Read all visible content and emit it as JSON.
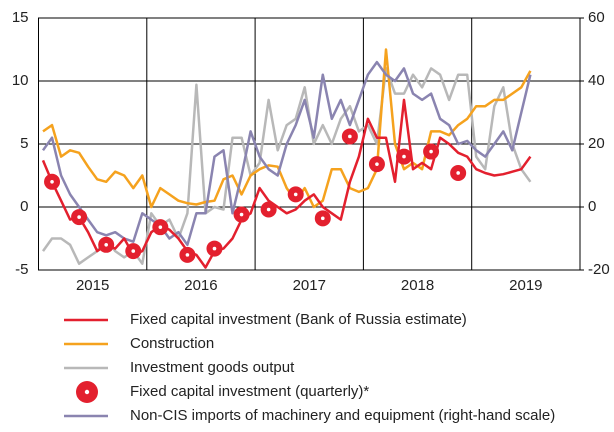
{
  "chart_data": {
    "type": "line",
    "categories": [
      null,
      null,
      null,
      null,
      null,
      "2015",
      null,
      null,
      null,
      null,
      null,
      null,
      null,
      null,
      null,
      null,
      null,
      "2016",
      null,
      null,
      null,
      null,
      null,
      null,
      null,
      null,
      null,
      null,
      null,
      "2017",
      null,
      null,
      null,
      null,
      null,
      null,
      null,
      null,
      null,
      null,
      null,
      "2018",
      null,
      null,
      null,
      null,
      null,
      null,
      null,
      null,
      null,
      null,
      null,
      "2019",
      null,
      null,
      null,
      null,
      null,
      null
    ],
    "ylim": [
      -5,
      15
    ],
    "yticks": [
      -5,
      0,
      5,
      10,
      15
    ],
    "y2lim": [
      -20,
      60
    ],
    "y2ticks": [
      -20,
      0,
      20,
      40,
      60
    ],
    "grid": true,
    "series": [
      {
        "name": "Fixed capital investment (Bank of Russia estimate)",
        "color": "#e3202e",
        "mark": "line",
        "values": [
          3.7,
          2.0,
          0.5,
          -1.0,
          -0.8,
          -2.0,
          -3.5,
          -3.0,
          -3.3,
          -2.5,
          -3.8,
          -3.5,
          -2.0,
          -1.5,
          -1.8,
          -2.5,
          -3.5,
          -3.8,
          -4.8,
          -3.5,
          -3.3,
          -2.5,
          -1.0,
          -0.5,
          1.5,
          0.5,
          0.0,
          -0.5,
          -0.2,
          0.5,
          1.0,
          0.0,
          -0.5,
          -1.0,
          2.0,
          4.0,
          7.0,
          5.5,
          5.5,
          2.0,
          8.5,
          3.0,
          3.5,
          3.0,
          5.5,
          5.0,
          4.3,
          4.0,
          3.0,
          2.7,
          2.5,
          2.6,
          2.8,
          3.0,
          4.0,
          null,
          null,
          null,
          null,
          null
        ]
      },
      {
        "name": "Construction",
        "color": "#f5a21e",
        "mark": "line",
        "values": [
          6.0,
          6.5,
          4.0,
          4.5,
          4.3,
          3.2,
          2.2,
          2.0,
          2.8,
          2.5,
          1.5,
          2.5,
          0.0,
          1.5,
          1.0,
          0.5,
          0.3,
          0.2,
          0.4,
          0.5,
          2.2,
          2.5,
          1.0,
          2.5,
          3.0,
          3.3,
          3.2,
          1.5,
          0.5,
          1.5,
          0.0,
          0.5,
          3.0,
          3.0,
          1.5,
          1.2,
          1.5,
          3.0,
          12.5,
          5.0,
          3.0,
          3.5,
          3.0,
          6.0,
          6.0,
          5.7,
          6.5,
          7.0,
          8.0,
          8.0,
          8.5,
          8.5,
          9.0,
          9.5,
          10.8,
          null,
          null,
          null,
          null,
          null
        ]
      },
      {
        "name": "Investment goods output",
        "color": "#b8b8b8",
        "mark": "line",
        "values": [
          -3.5,
          -2.5,
          -2.5,
          -3.0,
          -4.5,
          -4.0,
          -3.5,
          -2.5,
          -3.5,
          -4.0,
          -3.5,
          -4.5,
          -0.5,
          -1.5,
          -1.0,
          -2.5,
          -0.5,
          9.7,
          -0.5,
          0.0,
          -0.2,
          5.5,
          5.5,
          2.5,
          3.5,
          8.5,
          4.5,
          6.5,
          7.0,
          9.5,
          5.0,
          6.5,
          5.0,
          7.0,
          8.0,
          6.0,
          6.5,
          5.0,
          11.0,
          9.0,
          9.0,
          10.5,
          9.5,
          11.0,
          10.5,
          8.5,
          10.5,
          10.5,
          4.0,
          3.0,
          8.0,
          9.5,
          5.0,
          3.0,
          2.0,
          null,
          null,
          null,
          null,
          null
        ]
      },
      {
        "name": "Fixed capital investment (quarterly)*",
        "color": "#e3202e",
        "mark": "circle",
        "values": [
          null,
          2.0,
          null,
          null,
          -0.8,
          null,
          null,
          -3.0,
          null,
          null,
          -3.5,
          null,
          null,
          -1.6,
          null,
          null,
          -3.8,
          null,
          null,
          -3.3,
          null,
          null,
          -0.6,
          null,
          null,
          -0.2,
          null,
          null,
          1.0,
          null,
          null,
          -0.9,
          null,
          null,
          5.6,
          null,
          null,
          3.4,
          null,
          null,
          4.0,
          null,
          null,
          4.4,
          null,
          null,
          2.7,
          null,
          null,
          null,
          null,
          null,
          null,
          null,
          null,
          null,
          null,
          null,
          null,
          null
        ]
      },
      {
        "name": "Non-CIS imports of machinery and equipment (right-hand scale)",
        "color": "#8a84b0",
        "mark": "line",
        "axis": "y2",
        "values": [
          18,
          22,
          10,
          4,
          0,
          -4,
          -8,
          -9,
          -8,
          -10,
          -11,
          -2,
          -4,
          -6,
          -10,
          -8,
          -12,
          -2,
          -2,
          16,
          18,
          -2,
          10,
          24,
          16,
          12,
          10,
          20,
          26,
          34,
          22,
          42,
          28,
          34,
          26,
          34,
          42,
          46,
          42,
          40,
          44,
          36,
          34,
          36,
          28,
          26,
          20,
          21,
          18,
          16,
          20,
          24,
          18,
          30,
          42,
          null,
          null,
          null,
          null,
          null
        ]
      }
    ]
  }
}
